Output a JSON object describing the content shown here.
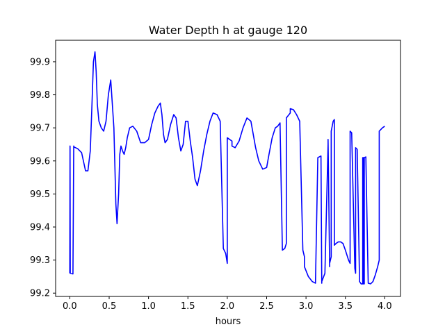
{
  "chart_data": {
    "type": "line",
    "title": "Water Depth h at gauge 120",
    "xlabel": "hours",
    "ylabel": "",
    "xlim": [
      -0.18,
      4.2
    ],
    "ylim": [
      99.19,
      99.965
    ],
    "x_ticks": [
      0.0,
      0.5,
      1.0,
      1.5,
      2.0,
      2.5,
      3.0,
      3.5,
      4.0
    ],
    "x_tick_labels": [
      "0.0",
      "0.5",
      "1.0",
      "1.5",
      "2.0",
      "2.5",
      "3.0",
      "3.5",
      "4.0"
    ],
    "y_ticks": [
      99.2,
      99.3,
      99.4,
      99.5,
      99.6,
      99.7,
      99.8,
      99.9
    ],
    "y_tick_labels": [
      "99.2",
      "99.3",
      "99.4",
      "99.5",
      "99.6",
      "99.7",
      "99.8",
      "99.9"
    ],
    "grid": false,
    "series": [
      {
        "color": "#0000ff",
        "x": [
          0.0,
          0.003,
          0.006,
          0.04,
          0.05,
          0.055,
          0.1,
          0.15,
          0.2,
          0.23,
          0.26,
          0.28,
          0.3,
          0.32,
          0.335,
          0.35,
          0.37,
          0.4,
          0.43,
          0.46,
          0.49,
          0.52,
          0.56,
          0.585,
          0.6,
          0.62,
          0.635,
          0.65,
          0.67,
          0.69,
          0.71,
          0.73,
          0.76,
          0.8,
          0.85,
          0.9,
          0.95,
          1.0,
          1.04,
          1.08,
          1.1,
          1.12,
          1.15,
          1.17,
          1.19,
          1.21,
          1.24,
          1.28,
          1.32,
          1.35,
          1.38,
          1.41,
          1.44,
          1.47,
          1.5,
          1.53,
          1.56,
          1.59,
          1.62,
          1.66,
          1.7,
          1.74,
          1.78,
          1.82,
          1.87,
          1.91,
          1.95,
          1.98,
          2.0,
          2.0,
          2.06,
          2.06,
          2.1,
          2.15,
          2.2,
          2.25,
          2.3,
          2.33,
          2.36,
          2.4,
          2.45,
          2.5,
          2.53,
          2.57,
          2.61,
          2.64,
          2.67,
          2.7,
          2.73,
          2.75,
          2.75,
          2.8,
          2.8,
          2.84,
          2.88,
          2.92,
          2.96,
          2.98,
          2.98,
          3.03,
          3.08,
          3.12,
          3.15,
          3.15,
          3.19,
          3.19,
          3.2,
          3.2,
          3.24,
          3.28,
          3.28,
          3.3,
          3.3,
          3.32,
          3.32,
          3.345,
          3.36,
          3.36,
          3.38,
          3.41,
          3.44,
          3.47,
          3.5,
          3.54,
          3.56,
          3.56,
          3.58,
          3.62,
          3.63,
          3.63,
          3.65,
          3.68,
          3.7,
          3.72,
          3.72,
          3.73,
          3.73,
          3.74,
          3.74,
          3.76,
          3.79,
          3.82,
          3.85,
          3.88,
          3.91,
          3.93,
          3.93,
          3.97,
          4.0
        ],
        "y": [
          99.26,
          99.645,
          99.26,
          99.258,
          99.645,
          99.642,
          99.637,
          99.625,
          99.57,
          99.57,
          99.63,
          99.76,
          99.9,
          99.93,
          99.87,
          99.77,
          99.72,
          99.7,
          99.69,
          99.72,
          99.8,
          99.845,
          99.7,
          99.47,
          99.41,
          99.5,
          99.62,
          99.645,
          99.63,
          99.62,
          99.64,
          99.67,
          99.7,
          99.705,
          99.69,
          99.655,
          99.655,
          99.665,
          99.71,
          99.745,
          99.755,
          99.765,
          99.775,
          99.74,
          99.68,
          99.655,
          99.665,
          99.71,
          99.74,
          99.73,
          99.67,
          99.63,
          99.65,
          99.72,
          99.72,
          99.66,
          99.61,
          99.545,
          99.525,
          99.57,
          99.63,
          99.68,
          99.72,
          99.745,
          99.74,
          99.72,
          99.335,
          99.32,
          99.29,
          99.67,
          99.66,
          99.645,
          99.64,
          99.66,
          99.7,
          99.73,
          99.72,
          99.68,
          99.64,
          99.6,
          99.575,
          99.58,
          99.62,
          99.67,
          99.7,
          99.705,
          99.715,
          99.33,
          99.335,
          99.35,
          99.73,
          99.745,
          99.758,
          99.755,
          99.74,
          99.72,
          99.33,
          99.31,
          99.28,
          99.25,
          99.235,
          99.23,
          99.61,
          99.61,
          99.615,
          99.615,
          99.23,
          99.235,
          99.26,
          99.65,
          99.665,
          99.28,
          99.29,
          99.31,
          99.69,
          99.72,
          99.725,
          99.345,
          99.35,
          99.355,
          99.355,
          99.35,
          99.33,
          99.3,
          99.29,
          99.69,
          99.685,
          99.275,
          99.26,
          99.64,
          99.635,
          99.235,
          99.228,
          99.228,
          99.61,
          99.61,
          99.228,
          99.228,
          99.61,
          99.612,
          99.23,
          99.228,
          99.235,
          99.255,
          99.28,
          99.3,
          99.69,
          99.7,
          99.705
        ]
      }
    ]
  }
}
